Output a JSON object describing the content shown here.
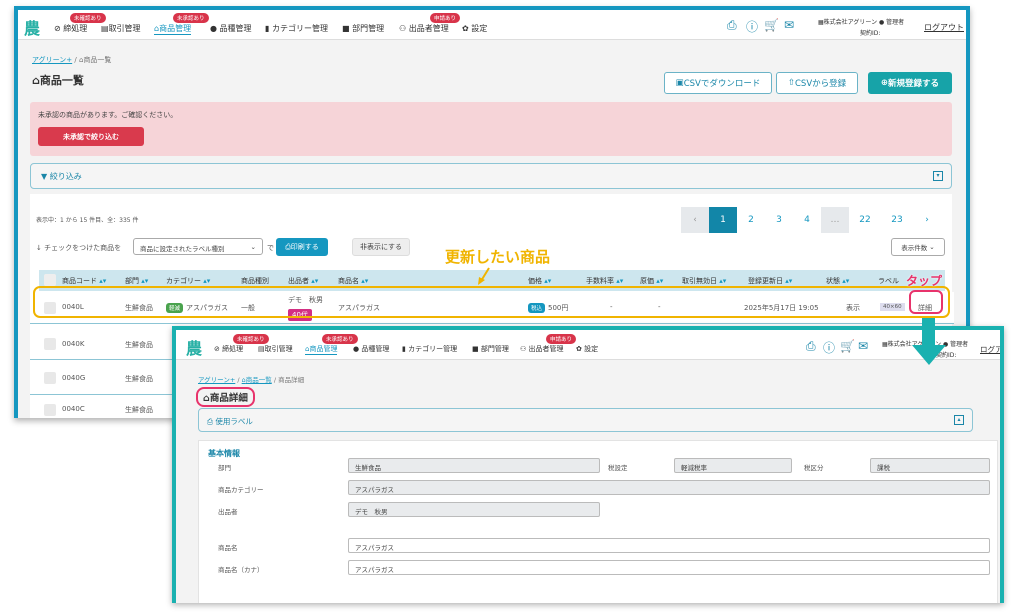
{
  "nav": {
    "logo": "農",
    "items": [
      {
        "label": "締処理",
        "badge": "未確認あり"
      },
      {
        "label": "取引管理"
      },
      {
        "label": "商品管理",
        "badge": "未承認あり"
      },
      {
        "label": "品種管理"
      },
      {
        "label": "カテゴリー管理"
      },
      {
        "label": "部門管理"
      },
      {
        "label": "出品者管理",
        "badge": "申請あり"
      },
      {
        "label": "設定"
      }
    ],
    "icons": [
      "printer-icon",
      "help-icon",
      "cart-icon",
      "mail-icon"
    ],
    "company": "株式会社アグリーン",
    "user": "管理者",
    "contract_label": "契約ID:",
    "logout": "ログアウト"
  },
  "list": {
    "breadcrumb": [
      "アグリーン+",
      "商品一覧"
    ],
    "title": "商品一覧",
    "buttons": {
      "csv_download": "CSVでダウンロード",
      "csv_upload": "CSVから登録",
      "new": "新規登録する"
    },
    "alert": {
      "message": "未承認の商品があります。ご確認ください。",
      "button": "未承認で絞り込む"
    },
    "filter": "絞り込み",
    "count_text": "表示中：1 から 15 件目、全：335 件",
    "pagination": [
      "‹",
      "1",
      "2",
      "3",
      "4",
      "…",
      "22",
      "23",
      "›"
    ],
    "current_page": "1",
    "bulk": {
      "prefix": "↓ チェックをつけた商品を",
      "select": "商品に設定されたラベル種別",
      "de": "で",
      "print": "印刷する",
      "hide": "非表示にする"
    },
    "per_page": "表示件数",
    "columns": [
      "商品コード",
      "部門",
      "カテゴリー",
      "商品種別",
      "出品者",
      "商品名",
      "価格",
      "手数料率",
      "原価",
      "取引無効日",
      "登録更新日",
      "状態",
      "ラベル"
    ],
    "rows": [
      {
        "code": "0040L",
        "dept": "生鮮食品",
        "cat_tag": "軽減",
        "category": "アスパラガス",
        "type": "一般",
        "seller": "デモ　秋男",
        "seller_tag": "40代",
        "name": "アスパラガス",
        "price_tag": "税込",
        "price": "500円",
        "fee": "-",
        "cost": "-",
        "invalid": "",
        "updated": "2025年5月17日 19:05",
        "status": "表示",
        "label": "40×60",
        "detail": "詳細"
      },
      {
        "code": "0040K",
        "dept": "生鮮食品"
      },
      {
        "code": "0040G",
        "dept": "生鮮食品"
      },
      {
        "code": "0040C",
        "dept": "生鮮食品"
      }
    ]
  },
  "annotations": {
    "target": "更新したい商品",
    "tap": "タップ"
  },
  "detail": {
    "breadcrumb": [
      "アグリーン+",
      "商品一覧",
      "商品詳細"
    ],
    "title": "商品詳細",
    "label_section": "使用ラベル",
    "section": "基本情報",
    "fields": {
      "dept_label": "部門",
      "dept": "生鮮食品",
      "tax_label": "税設定",
      "tax": "軽減税率",
      "taxcls_label": "税区分",
      "taxcls": "課税",
      "cat_label": "商品カテゴリー",
      "cat": "アスパラガス",
      "seller_label": "出品者",
      "seller": "デモ　秋男",
      "name_label": "商品名",
      "name": "アスパラガス",
      "kana_label": "商品名（カナ）",
      "kana": "アスパラガス"
    }
  },
  "colors": {
    "primary": "#1597c0",
    "teal": "#1ab1b0",
    "danger": "#d8344a",
    "highlight": "#f0b400",
    "tap": "#e8336b"
  }
}
